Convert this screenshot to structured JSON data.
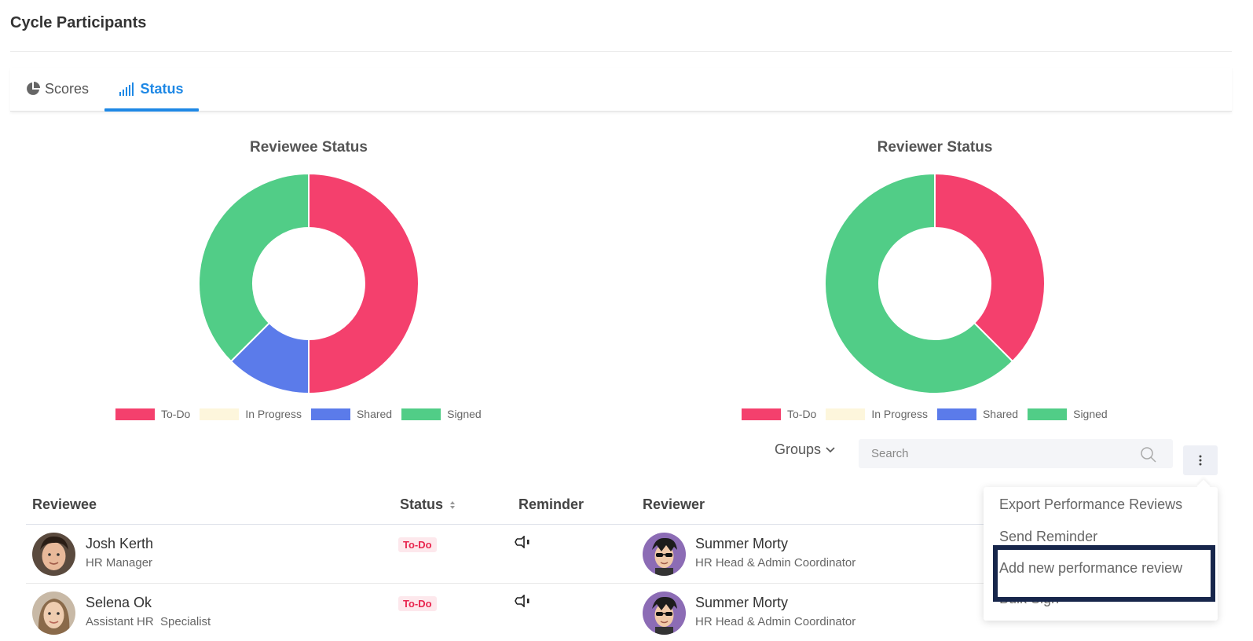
{
  "page": {
    "title": "Cycle Participants"
  },
  "tabs": [
    {
      "label": "Scores",
      "icon": "pie-chart-icon",
      "active": false
    },
    {
      "label": "Status",
      "icon": "signal-bars-icon",
      "active": true
    }
  ],
  "colors": {
    "accent": "#1e88e5",
    "todo": "#f4406d",
    "in_progress": "#fdf6dc",
    "shared": "#5b7bea",
    "signed": "#51cd87",
    "highlight": "#17264b"
  },
  "chart_data": [
    {
      "type": "pie",
      "variant": "donut",
      "title": "Reviewee Status",
      "labels": [
        "To-Do",
        "In Progress",
        "Shared",
        "Signed"
      ],
      "values": [
        50,
        0,
        12.5,
        37.5
      ],
      "legend": "bottom"
    },
    {
      "type": "pie",
      "variant": "donut",
      "title": "Reviewer Status",
      "labels": [
        "To-Do",
        "In Progress",
        "Shared",
        "Signed"
      ],
      "values": [
        37.5,
        0,
        0,
        62.5
      ],
      "legend": "bottom"
    }
  ],
  "toolbar": {
    "groups_label": "Groups",
    "search_placeholder": "Search",
    "more_icon": "kebab-icon"
  },
  "table": {
    "headers": {
      "reviewee": "Reviewee",
      "status": "Status",
      "reminder": "Reminder",
      "reviewer": "Reviewer"
    },
    "rows": [
      {
        "reviewee_name": "Josh Kerth",
        "reviewee_role": "HR Manager",
        "status": "To-Do",
        "reviewer_name": "Summer Morty",
        "reviewer_role": "HR Head & Admin Coordinator"
      },
      {
        "reviewee_name": "Selena Ok",
        "reviewee_role": "Assistant HR  Specialist",
        "status": "To-Do",
        "reviewer_name": "Summer Morty",
        "reviewer_role": "HR Head & Admin Coordinator"
      }
    ]
  },
  "menu": {
    "items": [
      "Export Performance Reviews",
      "Send Reminder",
      "Add new performance review",
      "Bulk Sign"
    ]
  }
}
